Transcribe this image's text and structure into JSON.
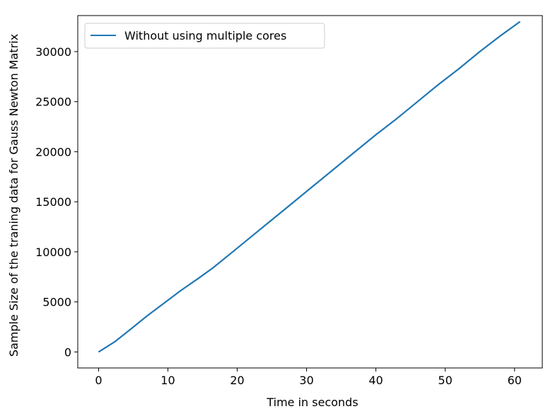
{
  "chart_data": {
    "type": "line",
    "xlabel": "Time in seconds",
    "ylabel": "Sample Size of the traning data for Gauss Newton Matrix",
    "xlim": [
      -3.0,
      64.0
    ],
    "ylim": [
      -1600,
      33600
    ],
    "xticks": [
      0,
      10,
      20,
      30,
      40,
      50,
      60
    ],
    "yticks": [
      0,
      5000,
      10000,
      15000,
      20000,
      25000,
      30000
    ],
    "grid": false,
    "legend_position": "top-left",
    "series": [
      {
        "name": "Without using multiple cores",
        "color": "#1f77b4",
        "x": [
          0,
          2.3,
          4.5,
          7.0,
          9.5,
          12.0,
          14.5,
          16.5,
          19.0,
          22.0,
          25.0,
          28.0,
          31.0,
          34.0,
          37.0,
          40.0,
          43.0,
          46.0,
          49.0,
          52.0,
          55.0,
          58.0,
          60.8
        ],
        "y": [
          0,
          1000,
          2200,
          3600,
          4900,
          6200,
          7400,
          8400,
          9800,
          11500,
          13200,
          14900,
          16600,
          18300,
          20000,
          21700,
          23300,
          25000,
          26700,
          28300,
          30000,
          31600,
          33000
        ]
      }
    ]
  }
}
